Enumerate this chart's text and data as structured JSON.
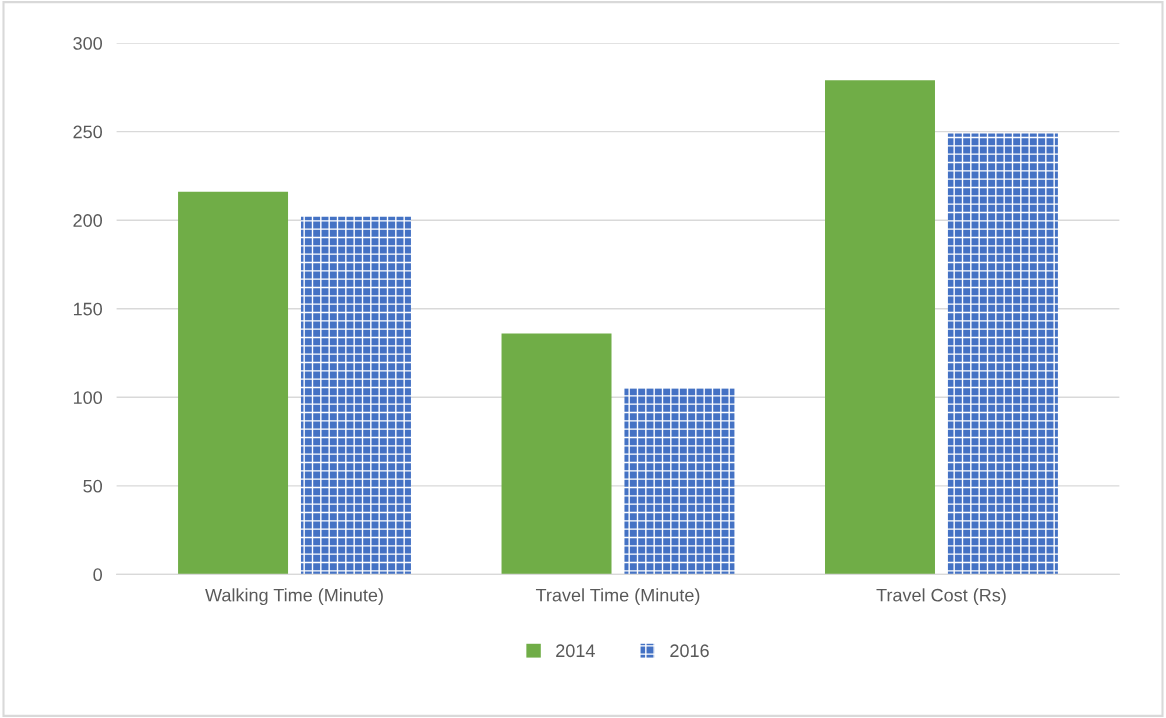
{
  "chart_data": {
    "type": "bar",
    "categories": [
      "Walking Time (Minute)",
      "Travel Time (Minute)",
      "Travel Cost (Rs)"
    ],
    "series": [
      {
        "name": "2014",
        "color": "#70ad47",
        "values": [
          216,
          136,
          279
        ]
      },
      {
        "name": "2016",
        "color": "#4472c4",
        "values": [
          202,
          105,
          249
        ]
      }
    ],
    "ylim": [
      0,
      300
    ],
    "yticks": [
      0,
      50,
      100,
      150,
      200,
      250,
      300
    ],
    "grid": "y",
    "legend": "bottom"
  }
}
